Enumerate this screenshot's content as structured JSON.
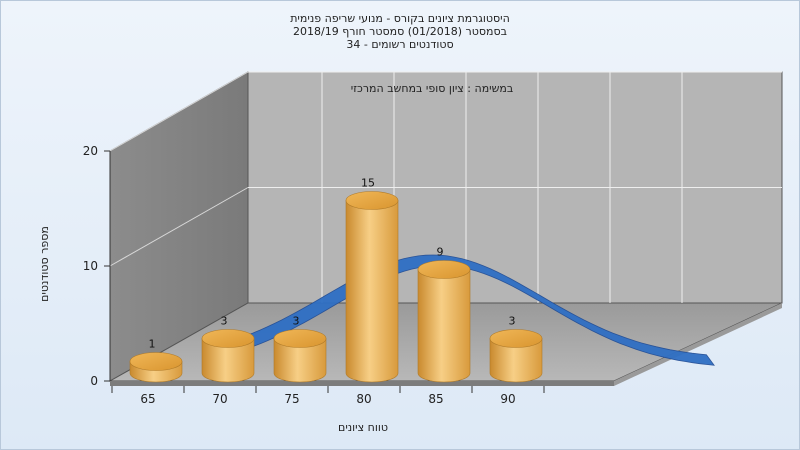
{
  "chart_data": {
    "type": "bar",
    "title_lines": [
      "היסטוגרמת ציונים בקורס - מנועי שריפה פנימית",
      "בסמסטר  (01/2018)  סמסטר חורף  2018/19",
      "סטודנטים רשומים - 34"
    ],
    "subtitle": "במשימה : ציון סופי במחשב המרכזי",
    "categories": [
      "65",
      "70",
      "75",
      "80",
      "85",
      "90"
    ],
    "values": [
      1,
      3,
      3,
      15,
      9,
      3
    ],
    "data_labels": [
      "1",
      "3",
      "3",
      "15",
      "9",
      "3"
    ],
    "xlabel": "טווח ציונים",
    "ylabel": "מספר סטודנטים",
    "ylim": [
      0,
      20
    ],
    "yticks": [
      "0",
      "10",
      "20"
    ],
    "distribution_curve": true,
    "grid": true,
    "bar_color": "#e8a84a",
    "curve_color": "#2f6fc4"
  }
}
